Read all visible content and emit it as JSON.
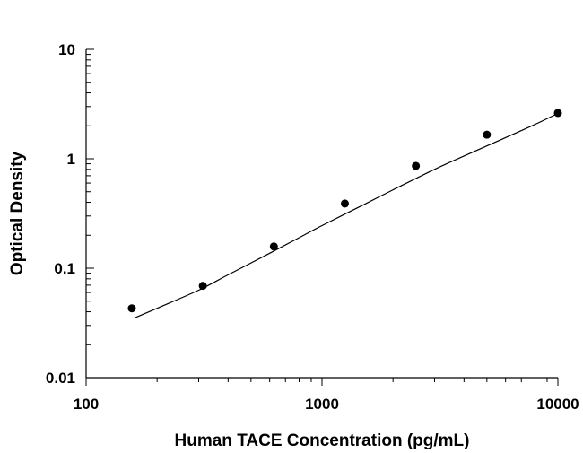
{
  "chart_data": {
    "type": "scatter",
    "xlabel": "Human TACE Concentration (pg/mL)",
    "ylabel": "Optical Density",
    "x_scale": "log",
    "y_scale": "log",
    "xlim": [
      100,
      10000
    ],
    "ylim": [
      0.01,
      10
    ],
    "x_tick_labels": [
      "100",
      "1000",
      "10000"
    ],
    "y_tick_labels": [
      "10",
      "1",
      "0.1",
      "0.01"
    ],
    "grid": false,
    "legend": "none",
    "series": [
      {
        "type": "scatter",
        "x": [
          156.25,
          312.5,
          625,
          1250,
          2500,
          5000,
          10000
        ],
        "y": [
          0.043,
          0.069,
          0.158,
          0.39,
          0.86,
          1.66,
          2.62
        ]
      },
      {
        "type": "line",
        "x": [
          160,
          200,
          300,
          400,
          600,
          800,
          1000,
          1500,
          2000,
          3000,
          4000,
          6000,
          8000,
          10000
        ],
        "y": [
          0.035,
          0.043,
          0.063,
          0.087,
          0.137,
          0.19,
          0.245,
          0.38,
          0.52,
          0.8,
          1.06,
          1.56,
          2.06,
          2.6
        ]
      }
    ]
  }
}
